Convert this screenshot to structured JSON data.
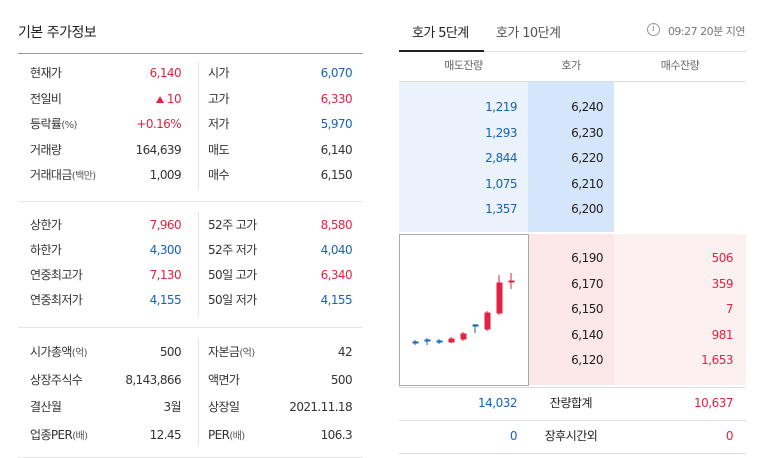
{
  "left": {
    "title": "기본 주가정보",
    "group1": [
      {
        "k1": "현재가",
        "v1": "6,140",
        "v1c": "red",
        "k2": "시가",
        "v2": "6,070",
        "v2c": "blue"
      },
      {
        "k1": "전일비",
        "v1": "10",
        "v1c": "red",
        "v1arrow": true,
        "k2": "고가",
        "v2": "6,330",
        "v2c": "red"
      },
      {
        "k1": "등락률",
        "k1s": "(%)",
        "v1": "+0.16%",
        "v1c": "red",
        "k2": "저가",
        "v2": "5,970",
        "v2c": "blue"
      },
      {
        "k1": "거래량",
        "v1": "164,639",
        "k2": "매도",
        "v2": "6,140"
      },
      {
        "k1": "거래대금",
        "k1s": "(백만)",
        "v1": "1,009",
        "k2": "매수",
        "v2": "6,150"
      }
    ],
    "group2": [
      {
        "k1": "상한가",
        "v1": "7,960",
        "v1c": "red",
        "k2": "52주 고가",
        "v2": "8,580",
        "v2c": "red"
      },
      {
        "k1": "하한가",
        "v1": "4,300",
        "v1c": "blue",
        "k2": "52주 저가",
        "v2": "4,040",
        "v2c": "blue"
      },
      {
        "k1": "연중최고가",
        "v1": "7,130",
        "v1c": "red",
        "k2": "50일 고가",
        "v2": "6,340",
        "v2c": "red"
      },
      {
        "k1": "연중최저가",
        "v1": "4,155",
        "v1c": "blue",
        "k2": "50일 저가",
        "v2": "4,155",
        "v2c": "blue"
      }
    ],
    "group3": [
      {
        "k1": "시가총액",
        "k1s": "(억)",
        "v1": "500",
        "k2": "자본금",
        "k2s": "(억)",
        "v2": "42"
      },
      {
        "k1": "상장주식수",
        "v1": "8,143,866",
        "k2": "액면가",
        "v2": "500"
      },
      {
        "k1": "결산월",
        "v1": "3월",
        "k2": "상장일",
        "v2": "2021.11.18"
      },
      {
        "k1": "업종PER",
        "k1s": "(배)",
        "v1": "12.45",
        "k2": "PER",
        "k2s": "(배)",
        "v2": "106.3"
      }
    ]
  },
  "right": {
    "tabs": [
      "호가 5단계",
      "호가 10단계"
    ],
    "info_icon": "info-icon",
    "delay_text": "09:27 20분 지연",
    "headers": [
      "매도잔량",
      "호가",
      "매수잔량"
    ],
    "asks": [
      {
        "qty": "1,219",
        "price": "6,240"
      },
      {
        "qty": "1,293",
        "price": "6,230"
      },
      {
        "qty": "2,844",
        "price": "6,220"
      },
      {
        "qty": "1,075",
        "price": "6,210"
      },
      {
        "qty": "1,357",
        "price": "6,200"
      }
    ],
    "bids": [
      {
        "price": "6,190",
        "qty": "506"
      },
      {
        "price": "6,170",
        "qty": "359"
      },
      {
        "price": "6,150",
        "qty": "7"
      },
      {
        "price": "6,140",
        "qty": "981"
      },
      {
        "price": "6,120",
        "qty": "1,653"
      }
    ],
    "summary": [
      {
        "left": "14,032",
        "label": "잔량합계",
        "right": "10,637"
      },
      {
        "left": "0",
        "label": "장후시간외",
        "right": "0"
      }
    ],
    "colors": {
      "up": "#e12343",
      "down": "#1763b6"
    }
  }
}
